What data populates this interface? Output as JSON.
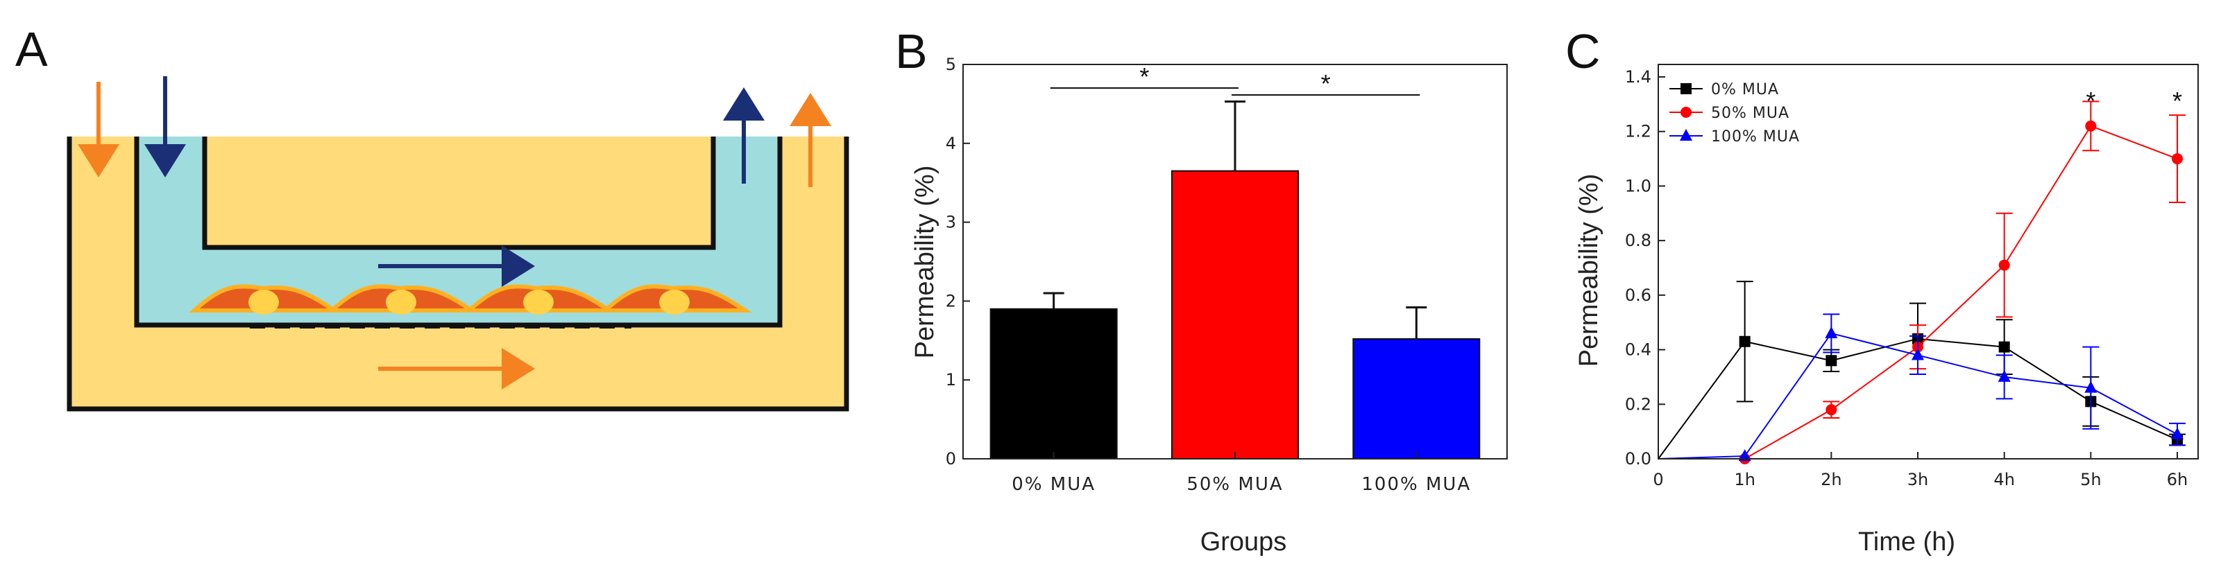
{
  "panels": {
    "a": "A",
    "b": "B",
    "c": "C"
  },
  "colors": {
    "outer_fill": "#FFDB7A",
    "insert_fill": "#9FDCDD",
    "cell_fill": "#E65C1E",
    "nucleus": "#FFD24A",
    "navy_arrow": "#1B2F77",
    "orange_arrow": "#F58220"
  },
  "chart_data": [
    {
      "type": "bar",
      "panel": "B",
      "title": "",
      "xlabel": "Groups",
      "ylabel": "Permeability (%)",
      "ylim": [
        0,
        5
      ],
      "yticks": [
        "0",
        "1",
        "2",
        "3",
        "4",
        "5"
      ],
      "categories": [
        "0% MUA",
        "50% MUA",
        "100% MUA"
      ],
      "values": [
        1.9,
        3.65,
        1.52
      ],
      "errors": [
        0.2,
        0.88,
        0.4
      ],
      "bar_colors": [
        "#000000",
        "#FF0000",
        "#0000FF"
      ],
      "significance": [
        {
          "from": 0,
          "to": 1,
          "label": "*"
        },
        {
          "from": 1,
          "to": 2,
          "label": "*"
        }
      ]
    },
    {
      "type": "line",
      "panel": "C",
      "title": "",
      "xlabel": "Time (h)",
      "ylabel": "Permeability (%)",
      "x": [
        0,
        1,
        2,
        3,
        4,
        5,
        6
      ],
      "xticks": [
        "0",
        "1h",
        "2h",
        "3h",
        "4h",
        "5h",
        "6h"
      ],
      "ylim": [
        0,
        1.4
      ],
      "yticks": [
        "0.0",
        "0.2",
        "0.4",
        "0.6",
        "0.8",
        "1.0",
        "1.2",
        "1.4"
      ],
      "legend_position": "top-left",
      "series": [
        {
          "name": "0% MUA",
          "color": "#000000",
          "marker": "square",
          "values": [
            0,
            0.43,
            0.36,
            0.44,
            0.41,
            0.21,
            0.07
          ],
          "errors": [
            0,
            0.22,
            0.04,
            0.13,
            0.1,
            0.09,
            0.02
          ]
        },
        {
          "name": "50% MUA",
          "color": "#FF0000",
          "marker": "circle",
          "values": [
            0,
            0.0,
            0.18,
            0.41,
            0.71,
            1.22,
            1.1
          ],
          "errors": [
            0,
            0.01,
            0.03,
            0.08,
            0.19,
            0.09,
            0.16
          ]
        },
        {
          "name": "100% MUA",
          "color": "#0000FF",
          "marker": "triangle",
          "values": [
            0,
            0.01,
            0.46,
            0.38,
            0.3,
            0.26,
            0.09
          ],
          "errors": [
            0,
            0.01,
            0.07,
            0.07,
            0.08,
            0.15,
            0.04
          ]
        }
      ],
      "annotations": [
        {
          "x": 5,
          "label": "*"
        },
        {
          "x": 6,
          "label": "*"
        }
      ]
    }
  ]
}
